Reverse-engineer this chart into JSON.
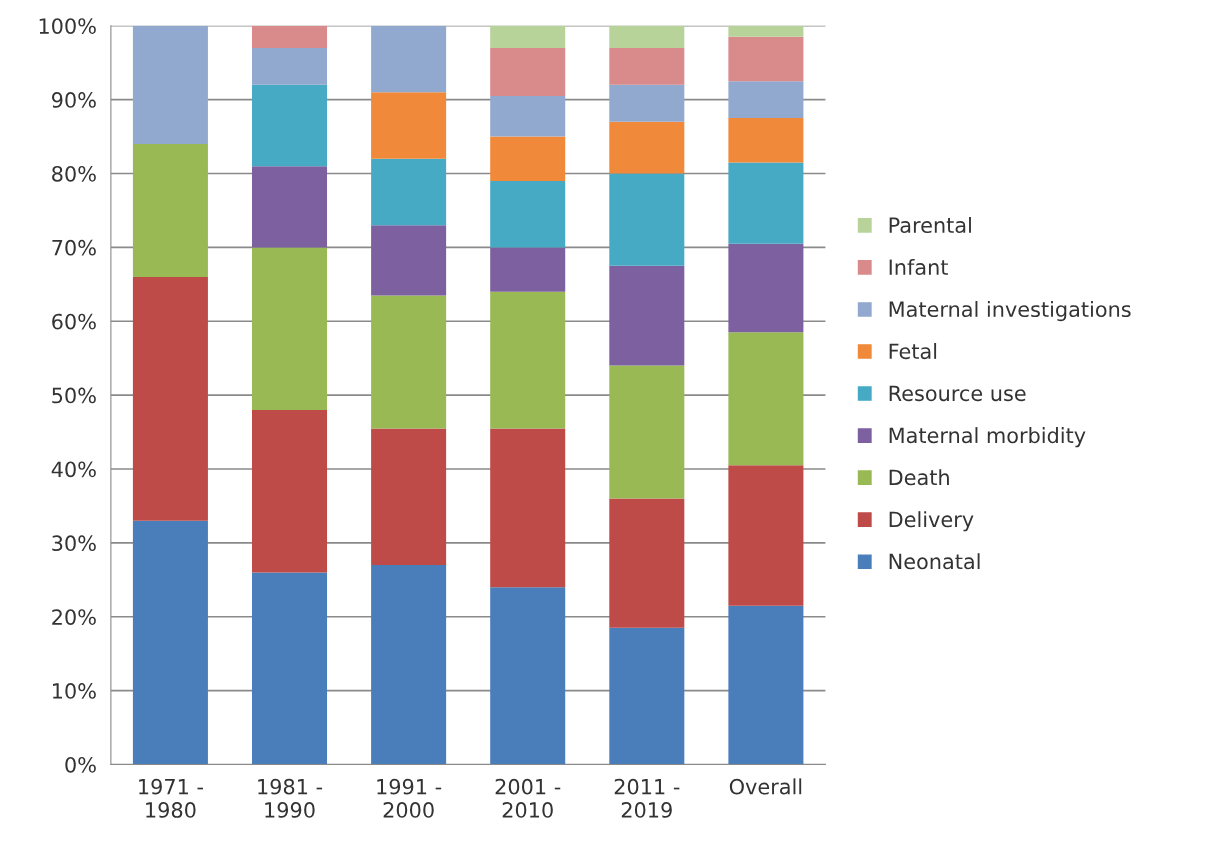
{
  "chart_data": {
    "type": "bar",
    "stacked": true,
    "categories": [
      "1971 -\n1980",
      "1981 -\n1990",
      "1991 -\n2000",
      "2001 -\n2010",
      "2011 -\n2019",
      "Overall"
    ],
    "series": [
      {
        "name": "Neonatal",
        "color": "#4a7ebb",
        "values": [
          33,
          26,
          27,
          24,
          18.5,
          21.5
        ]
      },
      {
        "name": "Delivery",
        "color": "#be4b48",
        "values": [
          33,
          22,
          18.5,
          21.5,
          17.5,
          19
        ]
      },
      {
        "name": "Death",
        "color": "#98b954",
        "values": [
          18,
          22,
          18,
          18.5,
          18,
          18
        ]
      },
      {
        "name": "Maternal morbidity",
        "color": "#7d60a0",
        "values": [
          0,
          11,
          9.5,
          6,
          13.5,
          12
        ]
      },
      {
        "name": "Resource use",
        "color": "#46aac5",
        "values": [
          0,
          11,
          9,
          9,
          12.5,
          11
        ]
      },
      {
        "name": "Fetal",
        "color": "#f08a3a",
        "values": [
          0,
          0,
          9,
          6,
          7,
          6
        ]
      },
      {
        "name": "Maternal investigations",
        "color": "#92a9cf",
        "values": [
          16,
          5,
          9,
          5.5,
          5,
          5
        ]
      },
      {
        "name": "Infant",
        "color": "#d98a8a",
        "values": [
          0,
          3,
          0,
          6.5,
          5,
          6
        ]
      },
      {
        "name": "Parental",
        "color": "#b7d39a",
        "values": [
          0,
          0,
          0,
          3,
          3,
          1.5
        ]
      }
    ],
    "ylim": [
      0,
      100
    ],
    "yticks": [
      {
        "value": 0,
        "label": "0%"
      },
      {
        "value": 10,
        "label": "10%"
      },
      {
        "value": 20,
        "label": "20%"
      },
      {
        "value": 30,
        "label": "30%"
      },
      {
        "value": 40,
        "label": "40%"
      },
      {
        "value": 50,
        "label": "50%"
      },
      {
        "value": 60,
        "label": "60%"
      },
      {
        "value": 70,
        "label": "70%"
      },
      {
        "value": 80,
        "label": "80%"
      },
      {
        "value": 90,
        "label": "90%"
      },
      {
        "value": 100,
        "label": "100%"
      }
    ],
    "grid": "y",
    "legend": "right"
  }
}
